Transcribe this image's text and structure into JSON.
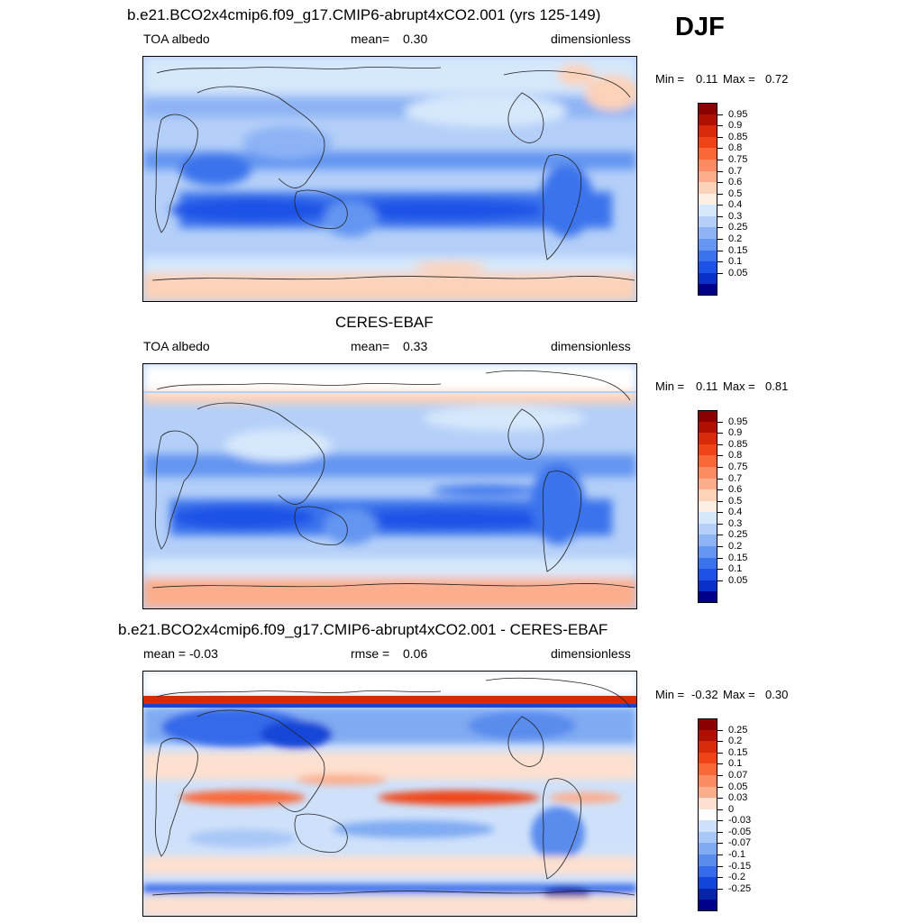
{
  "season": "DJF",
  "panels": [
    {
      "id": "model",
      "title": "b.e21.BCO2x4cmip6.f09_g17.CMIP6-abrupt4xCO2.001 (yrs 125-149)",
      "left": "TOA albedo",
      "center_label": "mean=",
      "center_value": "0.30",
      "right": "dimensionless",
      "min_label": "Min =",
      "min_value": "0.11",
      "max_label": "Max =",
      "max_value": "0.72",
      "colorbar": {
        "labels": [
          "0.95",
          "0.9",
          "0.85",
          "0.8",
          "0.75",
          "0.7",
          "0.6",
          "0.5",
          "0.4",
          "0.3",
          "0.25",
          "0.2",
          "0.15",
          "0.1",
          "0.05"
        ],
        "colors": [
          "#8b0000",
          "#b01000",
          "#d82a08",
          "#f04418",
          "#fa6838",
          "#fb8b60",
          "#fcae8c",
          "#fcd2b8",
          "#fdefe3",
          "#d6e8fb",
          "#b4cff8",
          "#8db3f5",
          "#6395f1",
          "#3b73ec",
          "#1c52e6",
          "#0a30c8",
          "#00008b"
        ]
      }
    },
    {
      "id": "obs",
      "title": "CERES-EBAF",
      "left": "TOA albedo",
      "center_label": "mean=",
      "center_value": "0.33",
      "right": "dimensionless",
      "min_label": "Min =",
      "min_value": "0.11",
      "max_label": "Max =",
      "max_value": "0.81",
      "colorbar": {
        "labels": [
          "0.95",
          "0.9",
          "0.85",
          "0.8",
          "0.75",
          "0.7",
          "0.6",
          "0.5",
          "0.4",
          "0.3",
          "0.25",
          "0.2",
          "0.15",
          "0.1",
          "0.05"
        ],
        "colors": [
          "#8b0000",
          "#b01000",
          "#d82a08",
          "#f04418",
          "#fa6838",
          "#fb8b60",
          "#fcae8c",
          "#fcd2b8",
          "#fdefe3",
          "#d6e8fb",
          "#b4cff8",
          "#8db3f5",
          "#6395f1",
          "#3b73ec",
          "#1c52e6",
          "#0a30c8",
          "#00008b"
        ]
      }
    },
    {
      "id": "diff",
      "title": "b.e21.BCO2x4cmip6.f09_g17.CMIP6-abrupt4xCO2.001 - CERES-EBAF",
      "left": "mean =  -0.03",
      "center_label": "rmse =",
      "center_value": "0.06",
      "right": "dimensionless",
      "min_label": "Min =",
      "min_value": "-0.32",
      "max_label": "Max =",
      "max_value": "0.30",
      "colorbar": {
        "labels": [
          "0.25",
          "0.2",
          "0.15",
          "0.1",
          "0.07",
          "0.05",
          "0.03",
          "0",
          "-0.03",
          "-0.05",
          "-0.07",
          "-0.1",
          "-0.15",
          "-0.2",
          "-0.25"
        ],
        "colors": [
          "#8b0000",
          "#b01000",
          "#d82a08",
          "#f04418",
          "#fa6838",
          "#fb8b60",
          "#fcae8c",
          "#fde0cf",
          "#ffffff",
          "#cfe1fa",
          "#a8c7f6",
          "#80abf2",
          "#5a8cee",
          "#356aea",
          "#1246d8",
          "#0524a8",
          "#00008b"
        ]
      }
    }
  ]
}
